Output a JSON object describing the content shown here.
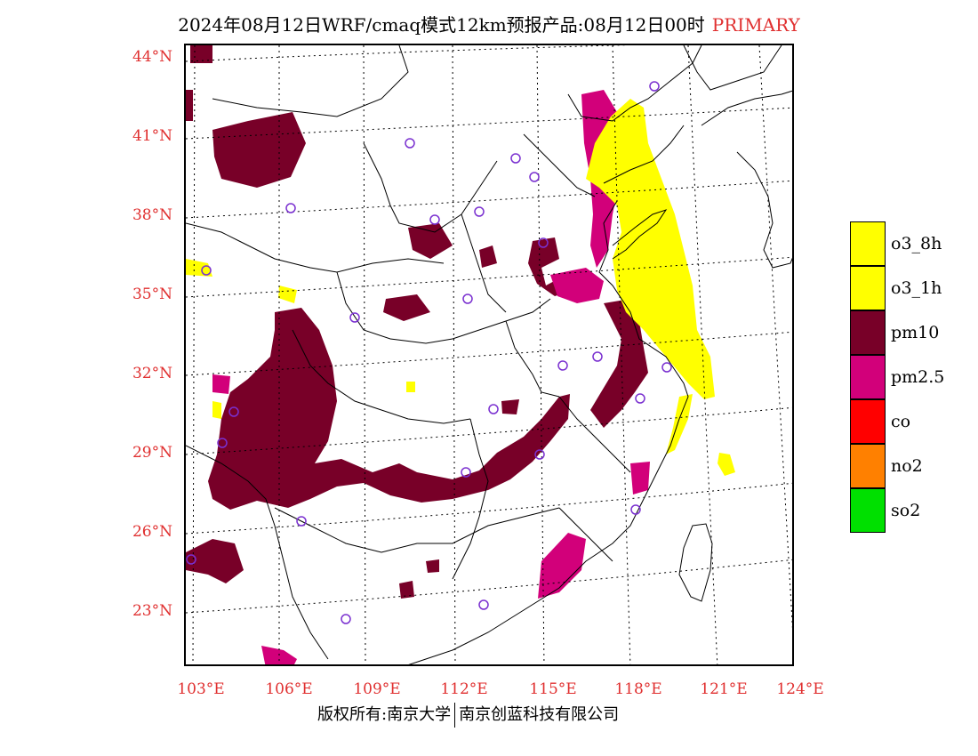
{
  "title": "2024年08月12日WRF/cmaq模式12km预报产品:08月12日00时",
  "title_tag": "PRIMARY",
  "lat_labels": [
    "44°N",
    "41°N",
    "38°N",
    "35°N",
    "32°N",
    "29°N",
    "26°N",
    "23°N"
  ],
  "lon_labels": [
    "103°E",
    "106°E",
    "109°E",
    "112°E",
    "115°E",
    "118°E",
    "121°E",
    "124°E"
  ],
  "legend": [
    {
      "label": "o3_8h",
      "color": "#ffff00"
    },
    {
      "label": "o3_1h",
      "color": "#ffff00"
    },
    {
      "label": "pm10",
      "color": "#780028"
    },
    {
      "label": "pm2.5",
      "color": "#d2007a"
    },
    {
      "label": "co",
      "color": "#ff0000"
    },
    {
      "label": "no2",
      "color": "#ff8000"
    },
    {
      "label": "so2",
      "color": "#00e000"
    }
  ],
  "footer": {
    "left": "版权所有:南京大学",
    "right": "南京创蓝科技有限公司"
  },
  "colors": {
    "axis_label": "#e03030",
    "o3": "#ffff00",
    "pm10": "#780028",
    "pm25": "#d2007a",
    "station": "#7a30d0"
  }
}
